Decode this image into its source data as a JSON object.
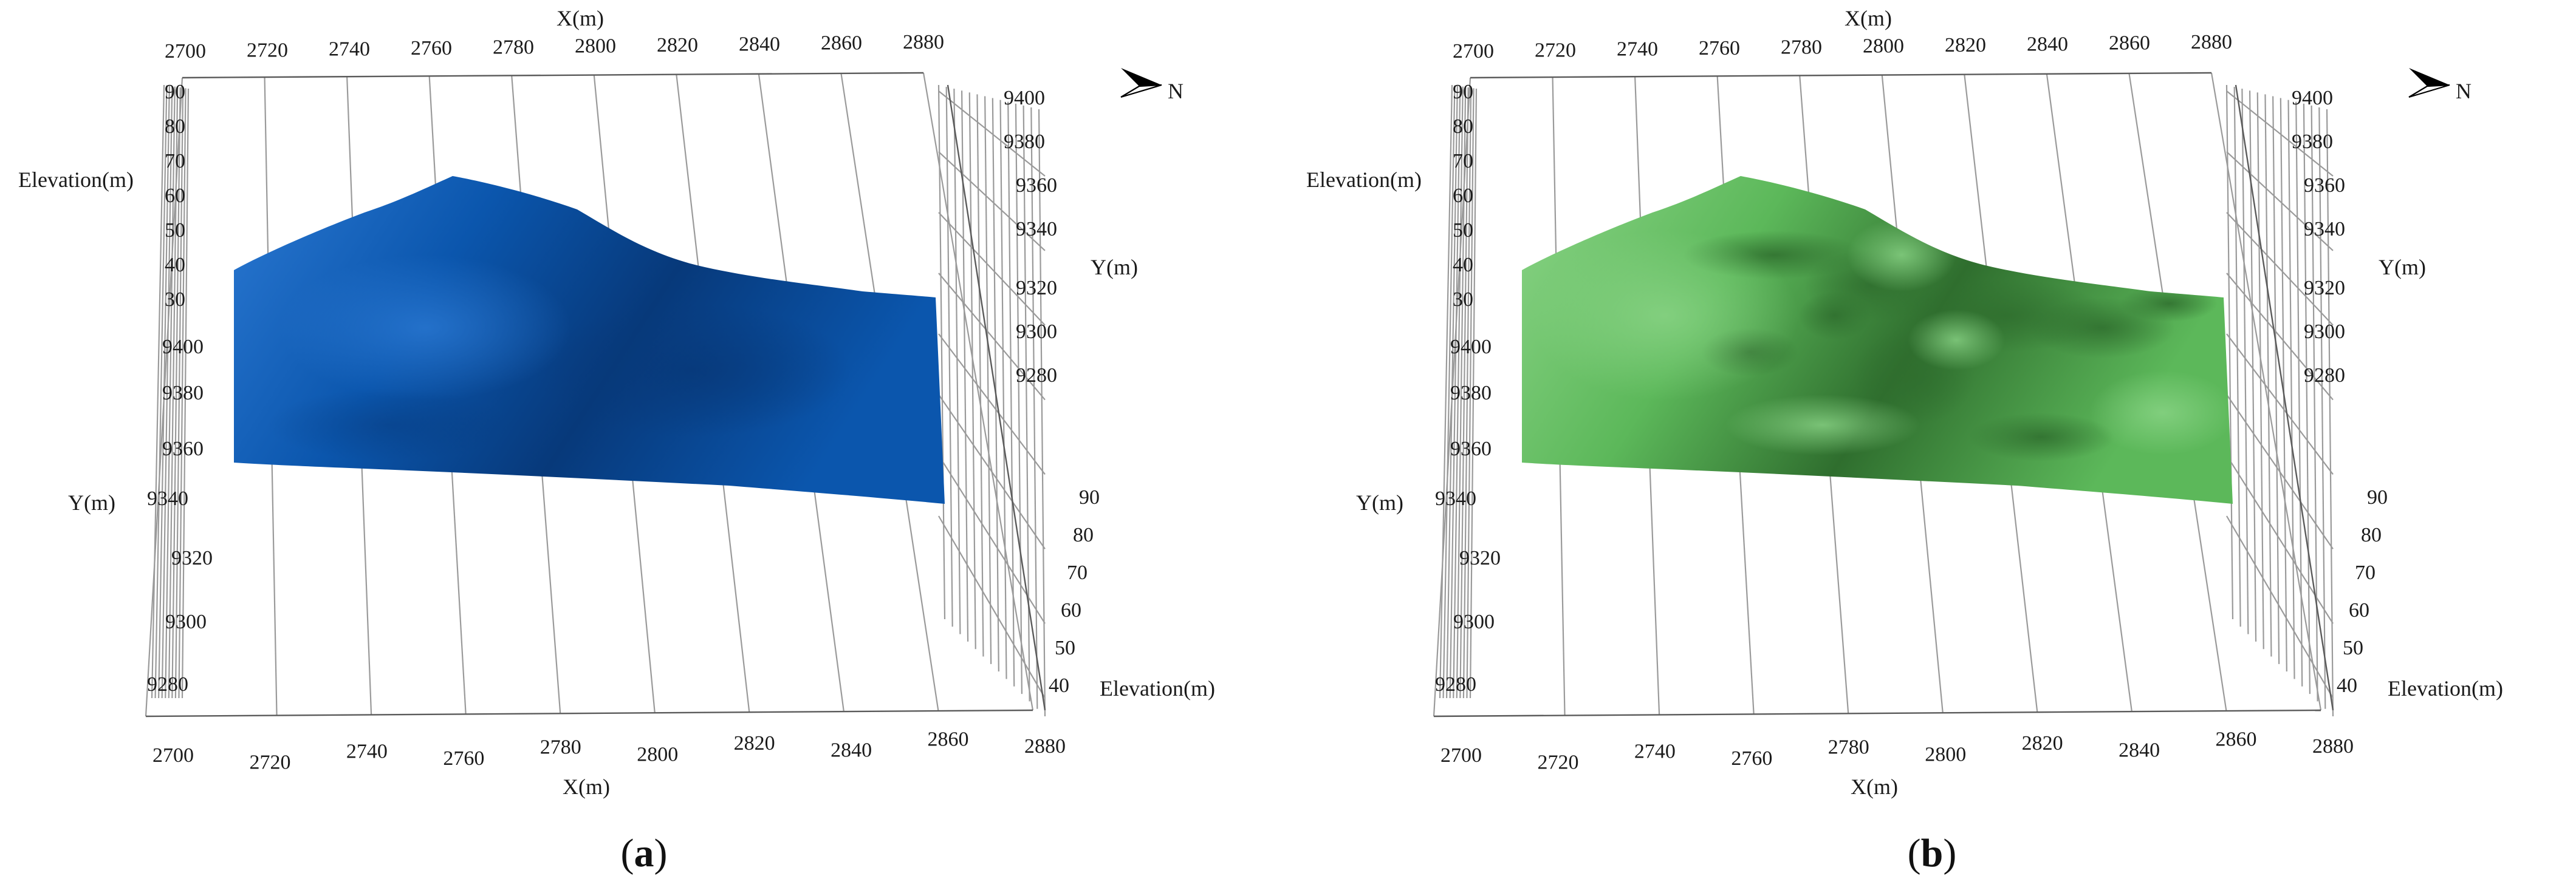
{
  "panels": [
    {
      "id": "a",
      "caption_letter": "a",
      "surface_color": "#0b56ad",
      "shade_color": "#07397a",
      "highlight_color": "#2a78d2",
      "texture": "smooth"
    },
    {
      "id": "b",
      "caption_letter": "b",
      "surface_color": "#5cb85a",
      "shade_color": "#2f6e2e",
      "highlight_color": "#8ad486",
      "texture": "rough"
    }
  ],
  "axes": {
    "x_title": "X(m)",
    "y_title": "Y(m)",
    "z_title": "Elevation(m)",
    "x_ticks": [
      "2700",
      "2720",
      "2740",
      "2760",
      "2780",
      "2800",
      "2820",
      "2840",
      "2860",
      "2880"
    ],
    "y_ticks_left": [
      "9400",
      "9380",
      "9360",
      "9340",
      "9320",
      "9300",
      "9280"
    ],
    "y_ticks_right": [
      "9400",
      "9380",
      "9360",
      "9340",
      "9320",
      "9300",
      "9280"
    ],
    "z_ticks_left": [
      "90",
      "80",
      "70",
      "60",
      "50",
      "40",
      "30"
    ],
    "z_ticks_right": [
      "90",
      "80",
      "70",
      "60",
      "50",
      "40"
    ]
  },
  "north_label": "N",
  "north_icon": "north-arrow-icon"
}
